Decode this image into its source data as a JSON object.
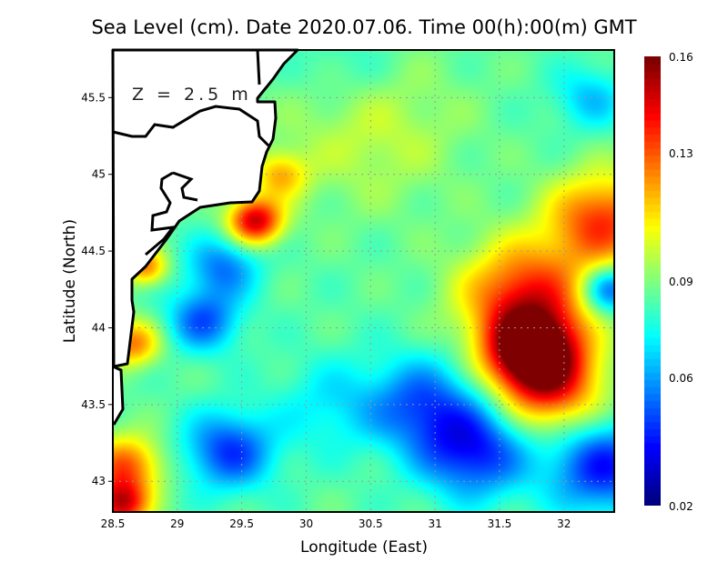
{
  "chart_data": {
    "type": "heatmap",
    "title": "Sea Level (cm). Date 2020.07.06. Time 00(h):00(m) GMT",
    "annotation": "Z = 2.5 m",
    "xlabel": "Longitude (East)",
    "ylabel": "Latitude (North)",
    "xlim": [
      28.5,
      32.39
    ],
    "ylim": [
      42.8,
      45.81
    ],
    "xticks": [
      "28.5",
      "29",
      "29.5",
      "30",
      "30.5",
      "31",
      "31.5",
      "32"
    ],
    "xtick_values": [
      28.5,
      29,
      29.5,
      30,
      30.5,
      31,
      31.5,
      32
    ],
    "yticks": [
      "43",
      "43.5",
      "44",
      "44.5",
      "45",
      "45.5"
    ],
    "ytick_values": [
      43,
      43.5,
      44,
      44.5,
      45,
      45.5
    ],
    "grid": true,
    "colorbar": {
      "colormap": "jet",
      "min": 0.02,
      "max": 0.16,
      "ticks": [
        "0.16",
        "0.13",
        "0.09",
        "0.06",
        "0.02"
      ],
      "tick_values": [
        0.16,
        0.13,
        0.09,
        0.06,
        0.02
      ]
    },
    "field_base": 0.085,
    "field_features": [
      {
        "lon": 31.75,
        "lat": 43.85,
        "value": 0.165,
        "r": 0.25
      },
      {
        "lon": 31.7,
        "lat": 44.2,
        "value": 0.14,
        "r": 0.35
      },
      {
        "lon": 31.9,
        "lat": 43.6,
        "value": 0.13,
        "r": 0.3
      },
      {
        "lon": 32.3,
        "lat": 44.7,
        "value": 0.135,
        "r": 0.3
      },
      {
        "lon": 32.35,
        "lat": 44.25,
        "value": 0.045,
        "r": 0.15
      },
      {
        "lon": 29.6,
        "lat": 44.7,
        "value": 0.15,
        "r": 0.15
      },
      {
        "lon": 29.2,
        "lat": 44.05,
        "value": 0.05,
        "r": 0.2
      },
      {
        "lon": 29.35,
        "lat": 44.4,
        "value": 0.055,
        "r": 0.2
      },
      {
        "lon": 29.4,
        "lat": 43.2,
        "value": 0.045,
        "r": 0.25
      },
      {
        "lon": 31.3,
        "lat": 43.2,
        "value": 0.04,
        "r": 0.3
      },
      {
        "lon": 30.9,
        "lat": 43.5,
        "value": 0.05,
        "r": 0.3
      },
      {
        "lon": 32.3,
        "lat": 43.1,
        "value": 0.04,
        "r": 0.3
      },
      {
        "lon": 30.2,
        "lat": 43.5,
        "value": 0.07,
        "r": 0.3
      },
      {
        "lon": 28.6,
        "lat": 43.1,
        "value": 0.13,
        "r": 0.2
      },
      {
        "lon": 28.55,
        "lat": 42.85,
        "value": 0.145,
        "r": 0.15
      },
      {
        "lon": 28.65,
        "lat": 43.9,
        "value": 0.125,
        "r": 0.15
      },
      {
        "lon": 28.75,
        "lat": 44.4,
        "value": 0.125,
        "r": 0.12
      },
      {
        "lon": 30.5,
        "lat": 45.3,
        "value": 0.1,
        "r": 0.5
      },
      {
        "lon": 29.8,
        "lat": 45.0,
        "value": 0.115,
        "r": 0.15
      },
      {
        "lon": 32.2,
        "lat": 45.5,
        "value": 0.065,
        "r": 0.2
      },
      {
        "lon": 30.3,
        "lat": 45.7,
        "value": 0.075,
        "r": 0.3
      }
    ]
  }
}
